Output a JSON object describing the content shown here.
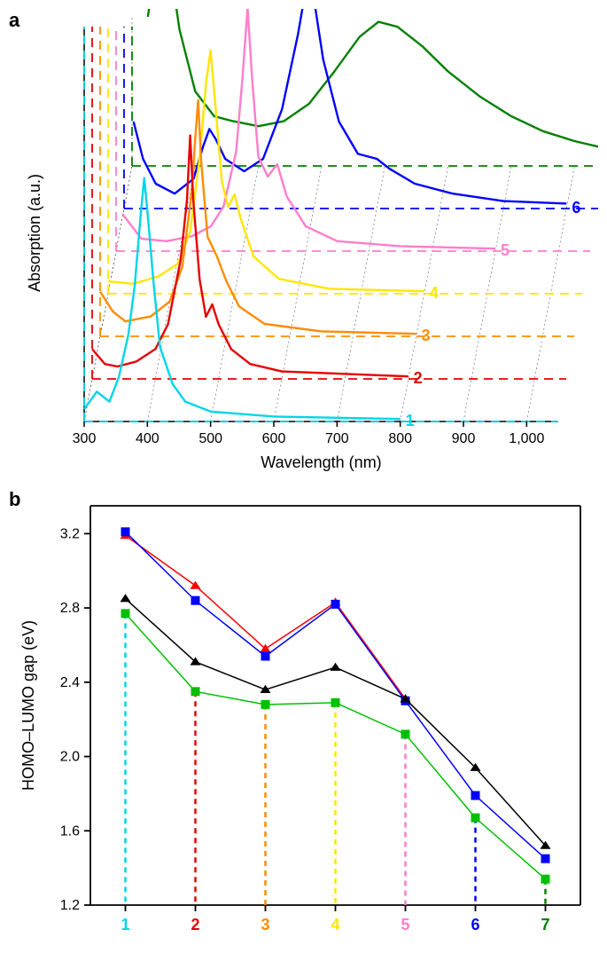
{
  "panelA": {
    "label": "a",
    "type": "3d_waterfall_spectra",
    "xlabel": "Wavelength (nm)",
    "ylabel": "Absorption (a.u.)",
    "xlim": [
      300,
      1050
    ],
    "xticks": [
      300,
      400,
      500,
      600,
      700,
      800,
      900,
      1000
    ],
    "grid_color": "#000000",
    "background_color": "#ffffff",
    "series": [
      {
        "id": "1",
        "color": "#00d5e9",
        "depth": 0,
        "points": [
          [
            300,
            0.05
          ],
          [
            320,
            0.12
          ],
          [
            340,
            0.08
          ],
          [
            355,
            0.18
          ],
          [
            370,
            0.35
          ],
          [
            380,
            0.55
          ],
          [
            390,
            0.85
          ],
          [
            395,
            0.98
          ],
          [
            400,
            0.85
          ],
          [
            410,
            0.55
          ],
          [
            420,
            0.3
          ],
          [
            440,
            0.15
          ],
          [
            460,
            0.08
          ],
          [
            500,
            0.04
          ],
          [
            600,
            0.02
          ],
          [
            800,
            0.01
          ]
        ]
      },
      {
        "id": "2",
        "color": "#e60000",
        "depth": 1,
        "points": [
          [
            300,
            0.12
          ],
          [
            320,
            0.06
          ],
          [
            340,
            0.05
          ],
          [
            370,
            0.07
          ],
          [
            400,
            0.12
          ],
          [
            420,
            0.22
          ],
          [
            440,
            0.48
          ],
          [
            450,
            0.72
          ],
          [
            455,
            0.98
          ],
          [
            460,
            0.72
          ],
          [
            470,
            0.4
          ],
          [
            480,
            0.25
          ],
          [
            490,
            0.3
          ],
          [
            500,
            0.22
          ],
          [
            520,
            0.12
          ],
          [
            550,
            0.06
          ],
          [
            600,
            0.03
          ],
          [
            800,
            0.01
          ]
        ]
      },
      {
        "id": "3",
        "color": "#ff8c00",
        "depth": 2,
        "points": [
          [
            300,
            0.18
          ],
          [
            320,
            0.1
          ],
          [
            340,
            0.06
          ],
          [
            380,
            0.08
          ],
          [
            410,
            0.14
          ],
          [
            430,
            0.28
          ],
          [
            445,
            0.58
          ],
          [
            450,
            0.78
          ],
          [
            455,
            0.95
          ],
          [
            460,
            0.7
          ],
          [
            470,
            0.4
          ],
          [
            485,
            0.32
          ],
          [
            500,
            0.22
          ],
          [
            520,
            0.12
          ],
          [
            560,
            0.05
          ],
          [
            650,
            0.02
          ],
          [
            800,
            0.01
          ]
        ]
      },
      {
        "id": "4",
        "color": "#ffe600",
        "depth": 3,
        "points": [
          [
            300,
            0.05
          ],
          [
            340,
            0.04
          ],
          [
            380,
            0.07
          ],
          [
            410,
            0.12
          ],
          [
            430,
            0.25
          ],
          [
            445,
            0.55
          ],
          [
            455,
            0.85
          ],
          [
            462,
            0.98
          ],
          [
            470,
            0.75
          ],
          [
            480,
            0.45
          ],
          [
            490,
            0.35
          ],
          [
            500,
            0.4
          ],
          [
            510,
            0.3
          ],
          [
            530,
            0.15
          ],
          [
            570,
            0.06
          ],
          [
            650,
            0.02
          ],
          [
            800,
            0.01
          ]
        ]
      },
      {
        "id": "5",
        "color": "#ff7dcb",
        "depth": 4,
        "points": [
          [
            310,
            0.15
          ],
          [
            340,
            0.05
          ],
          [
            380,
            0.04
          ],
          [
            420,
            0.06
          ],
          [
            450,
            0.1
          ],
          [
            470,
            0.18
          ],
          [
            490,
            0.4
          ],
          [
            500,
            0.7
          ],
          [
            508,
            0.98
          ],
          [
            515,
            0.7
          ],
          [
            525,
            0.38
          ],
          [
            540,
            0.3
          ],
          [
            555,
            0.35
          ],
          [
            570,
            0.22
          ],
          [
            600,
            0.1
          ],
          [
            650,
            0.04
          ],
          [
            750,
            0.02
          ],
          [
            900,
            0.01
          ]
        ]
      },
      {
        "id": "6",
        "color": "#0000ff",
        "depth": 5,
        "points": [
          [
            315,
            0.35
          ],
          [
            330,
            0.2
          ],
          [
            350,
            0.1
          ],
          [
            380,
            0.06
          ],
          [
            410,
            0.12
          ],
          [
            425,
            0.25
          ],
          [
            435,
            0.32
          ],
          [
            445,
            0.28
          ],
          [
            460,
            0.2
          ],
          [
            490,
            0.15
          ],
          [
            520,
            0.2
          ],
          [
            550,
            0.4
          ],
          [
            575,
            0.7
          ],
          [
            590,
            0.92
          ],
          [
            600,
            0.85
          ],
          [
            615,
            0.6
          ],
          [
            640,
            0.35
          ],
          [
            670,
            0.22
          ],
          [
            700,
            0.2
          ],
          [
            720,
            0.16
          ],
          [
            760,
            0.1
          ],
          [
            820,
            0.06
          ],
          [
            900,
            0.03
          ],
          [
            1000,
            0.02
          ]
        ]
      },
      {
        "id": "7",
        "color": "#008000",
        "depth": 6,
        "points": [
          [
            325,
            0.6
          ],
          [
            340,
            0.85
          ],
          [
            348,
            0.98
          ],
          [
            358,
            0.85
          ],
          [
            375,
            0.55
          ],
          [
            400,
            0.3
          ],
          [
            430,
            0.2
          ],
          [
            460,
            0.18
          ],
          [
            500,
            0.16
          ],
          [
            540,
            0.18
          ],
          [
            580,
            0.25
          ],
          [
            620,
            0.38
          ],
          [
            660,
            0.52
          ],
          [
            690,
            0.58
          ],
          [
            720,
            0.56
          ],
          [
            760,
            0.48
          ],
          [
            800,
            0.38
          ],
          [
            850,
            0.28
          ],
          [
            900,
            0.2
          ],
          [
            950,
            0.14
          ],
          [
            1000,
            0.1
          ],
          [
            1050,
            0.07
          ]
        ]
      }
    ],
    "label_fontsize": 18,
    "tick_fontsize": 16,
    "depth_dx_per_step": 9,
    "depth_dy_per_step": -48
  },
  "panelB": {
    "label": "b",
    "type": "line_markers",
    "xlabel_categories": [
      "1",
      "2",
      "3",
      "4",
      "5",
      "6",
      "7"
    ],
    "category_colors": [
      "#00d5e9",
      "#e60000",
      "#ff8c00",
      "#ffe600",
      "#ff7dcb",
      "#0000ff",
      "#008000"
    ],
    "ylabel": "HOMO–LUMO gap (eV)",
    "ylim": [
      1.2,
      3.35
    ],
    "yticks": [
      1.2,
      1.6,
      2.0,
      2.4,
      2.8,
      3.2
    ],
    "background_color": "#ffffff",
    "drop_line_dash": "6,5",
    "series": [
      {
        "marker": "triangle",
        "color": "#ff0000",
        "line_color": "#ff0000",
        "values": [
          3.19,
          2.92,
          2.58,
          2.83,
          2.31,
          null,
          null
        ]
      },
      {
        "marker": "square",
        "color": "#0000ff",
        "line_color": "#0000ff",
        "values": [
          3.21,
          2.84,
          2.54,
          2.82,
          2.3,
          1.79,
          1.45
        ]
      },
      {
        "marker": "triangle",
        "color": "#000000",
        "line_color": "#000000",
        "values": [
          2.85,
          2.51,
          2.36,
          2.48,
          2.31,
          1.94,
          1.52
        ]
      },
      {
        "marker": "square",
        "color": "#00c000",
        "line_color": "#00c000",
        "values": [
          2.77,
          2.35,
          2.28,
          2.29,
          2.12,
          1.67,
          1.34
        ]
      }
    ],
    "marker_size": 10,
    "label_fontsize": 18,
    "tick_fontsize": 16
  }
}
